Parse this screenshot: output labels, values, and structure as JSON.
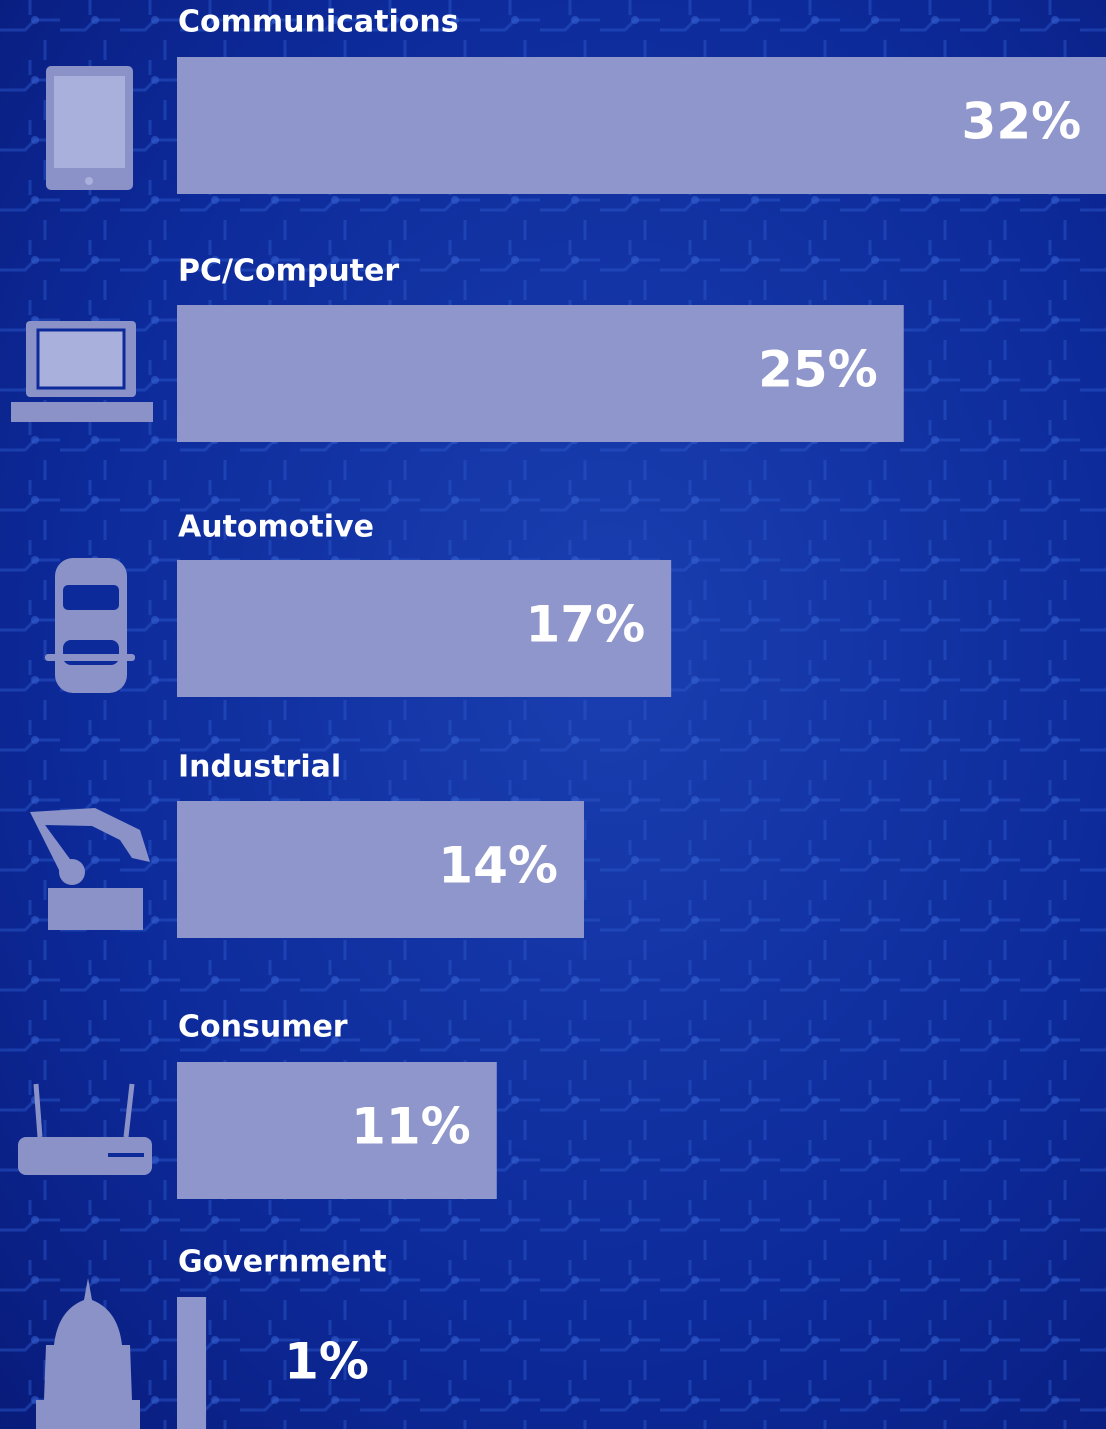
{
  "chart_data": {
    "type": "bar",
    "orientation": "horizontal",
    "categories": [
      "Communications",
      "PC/Computer",
      "Automotive",
      "Industrial",
      "Consumer",
      "Government"
    ],
    "values": [
      32,
      25,
      17,
      14,
      11,
      1
    ],
    "value_labels": [
      "32%",
      "25%",
      "17%",
      "14%",
      "11%",
      "1%"
    ],
    "color": "#8f96cb"
  }
}
